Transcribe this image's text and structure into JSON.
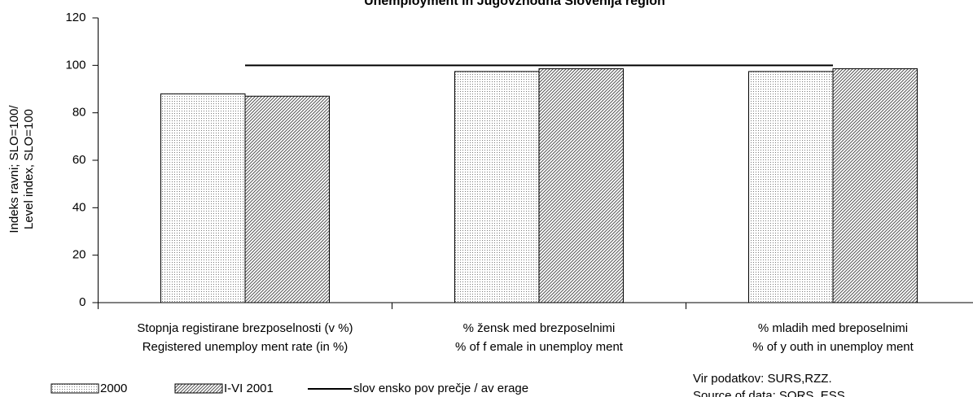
{
  "chart_data": {
    "type": "bar",
    "title": "Unemployment in Jugovzhodna Slovenija region",
    "y_label": [
      "Indeks ravni; SLO=100/",
      "Level index, SLO=100"
    ],
    "categories": [
      [
        "Stopnja registirane brezposelnosti (v %)",
        "Registered unemploy ment rate (in %)"
      ],
      [
        "% žensk med  brezposelnimi",
        "% of f emale in unemploy ment"
      ],
      [
        "% mladih med breposelnimi",
        "% of y outh in unemploy ment"
      ]
    ],
    "series": [
      {
        "name": "2000",
        "type": "bar",
        "color": "#000000",
        "pattern": "dots",
        "values": [
          88,
          97.4,
          97.4
        ]
      },
      {
        "name": "I-VI 2001",
        "type": "bar",
        "color": "#000000",
        "pattern": "diagonal",
        "values": [
          87,
          98.6,
          98.6
        ]
      },
      {
        "name": "slov ensko pov prečje / av erage",
        "type": "line",
        "color": "#000000",
        "values": [
          100,
          100,
          100
        ]
      }
    ],
    "ylim": [
      0,
      120
    ],
    "yticks": [
      0,
      20,
      40,
      60,
      80,
      100,
      120
    ],
    "source": [
      "Vir podatkov: SURS,RZZ.",
      "Source of data: SORS, ESS"
    ]
  }
}
